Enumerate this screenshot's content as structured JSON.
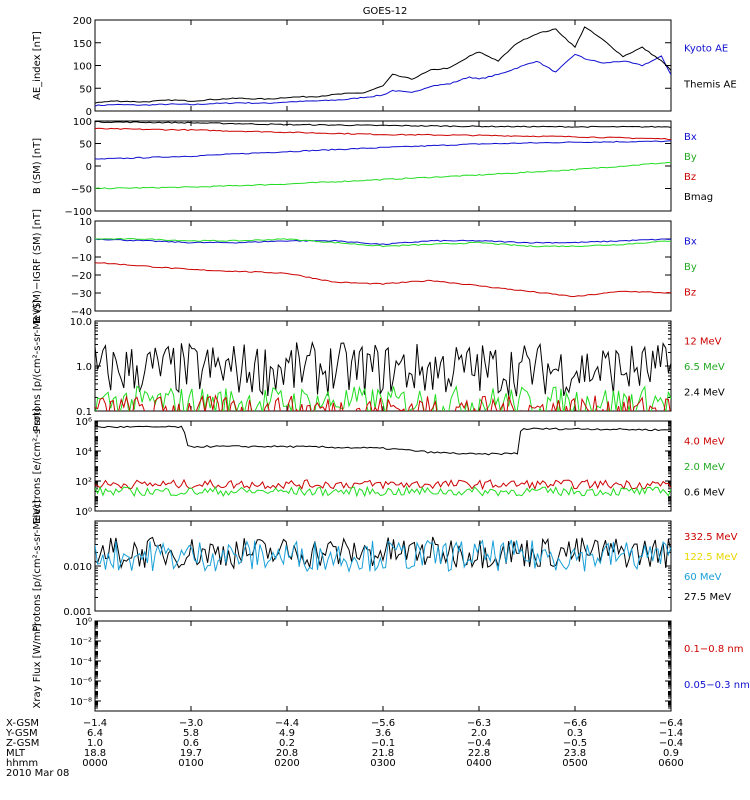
{
  "title": "GOES-12",
  "colors": {
    "black": "#000000",
    "blue": "#1010d0",
    "green": "#22dd22",
    "red": "#cc0000",
    "cyan": "#1aa0d8",
    "yellow": "#e8d800"
  },
  "chart_data": [
    {
      "type": "line",
      "ylabel": "AE_index [nT]",
      "scale": "linear",
      "ylim": [
        0,
        200
      ],
      "ticks": [
        "0",
        "50",
        "100",
        "150",
        "200"
      ],
      "tick_values": [
        0,
        50,
        100,
        150,
        200
      ],
      "legend": [
        {
          "text": "Kyoto AE",
          "color": "#1010d0"
        },
        {
          "text": "Themis AE",
          "color": "#000000"
        }
      ],
      "series": [
        {
          "name": "Kyoto AE",
          "color": "#1010d0",
          "x": [
            0,
            0.2,
            0.5,
            0.8,
            1.0,
            1.2,
            1.5,
            1.8,
            2.0,
            2.3,
            2.6,
            2.8,
            3.0,
            3.1,
            3.3,
            3.5,
            3.7,
            3.9,
            4.0,
            4.2,
            4.4,
            4.6,
            4.8,
            5.0,
            5.1,
            5.3,
            5.5,
            5.7,
            5.9,
            6.0
          ],
          "y": [
            12,
            14,
            13,
            15,
            14,
            16,
            18,
            17,
            20,
            22,
            25,
            30,
            35,
            45,
            40,
            55,
            60,
            75,
            70,
            80,
            95,
            110,
            85,
            125,
            115,
            105,
            110,
            100,
            120,
            80
          ]
        },
        {
          "name": "Themis AE",
          "color": "#000000",
          "x": [
            0,
            0.2,
            0.5,
            0.8,
            1.0,
            1.2,
            1.5,
            1.8,
            2.0,
            2.3,
            2.6,
            2.8,
            3.0,
            3.1,
            3.3,
            3.5,
            3.7,
            3.9,
            4.0,
            4.2,
            4.4,
            4.6,
            4.8,
            5.0,
            5.1,
            5.3,
            5.5,
            5.7,
            5.9,
            6.0
          ],
          "y": [
            18,
            22,
            20,
            24,
            22,
            25,
            28,
            26,
            30,
            32,
            38,
            40,
            55,
            80,
            70,
            90,
            95,
            120,
            130,
            110,
            150,
            170,
            180,
            140,
            185,
            155,
            120,
            140,
            110,
            90
          ]
        }
      ]
    },
    {
      "type": "line",
      "ylabel": "B (SM) [nT]",
      "scale": "linear",
      "ylim": [
        -100,
        100
      ],
      "ticks": [
        "−100",
        "−50",
        "0",
        "50",
        "100"
      ],
      "tick_values": [
        -100,
        -50,
        0,
        50,
        100
      ],
      "legend": [
        {
          "text": "Bx",
          "color": "#1010d0"
        },
        {
          "text": "By",
          "color": "#22aa22"
        },
        {
          "text": "Bz",
          "color": "#cc0000"
        },
        {
          "text": "Bmag",
          "color": "#000000"
        }
      ],
      "series": [
        {
          "name": "Bx",
          "color": "#1010d0",
          "x": [
            0,
            1,
            2,
            3,
            4,
            5,
            6
          ],
          "y": [
            15,
            22,
            32,
            41,
            49,
            53,
            55
          ]
        },
        {
          "name": "By",
          "color": "#22dd22",
          "x": [
            0,
            1,
            2,
            3,
            4,
            5,
            6
          ],
          "y": [
            -50,
            -47,
            -40,
            -30,
            -20,
            -8,
            8
          ]
        },
        {
          "name": "Bz",
          "color": "#cc0000",
          "x": [
            0,
            1,
            2,
            3,
            4,
            5,
            6
          ],
          "y": [
            83,
            80,
            75,
            70,
            68,
            65,
            60
          ]
        },
        {
          "name": "Bmag",
          "color": "#000000",
          "x": [
            0,
            1,
            2,
            3,
            4,
            5,
            6
          ],
          "y": [
            98,
            96,
            92,
            90,
            88,
            87,
            87
          ]
        }
      ]
    },
    {
      "type": "line",
      "ylabel": "B (SM)−IGRF (SM) [nT]",
      "scale": "linear",
      "ylim": [
        -40,
        10
      ],
      "ticks": [
        "−40",
        "−30",
        "−20",
        "−10",
        "0",
        "10"
      ],
      "tick_values": [
        -40,
        -30,
        -20,
        -10,
        0,
        10
      ],
      "legend": [
        {
          "text": "Bx",
          "color": "#1010d0"
        },
        {
          "text": "By",
          "color": "#22aa22"
        },
        {
          "text": "Bz",
          "color": "#cc0000"
        }
      ],
      "series": [
        {
          "name": "Bx",
          "color": "#1010d0",
          "x": [
            0,
            0.5,
            1,
            1.5,
            2,
            2.5,
            3,
            3.5,
            4,
            4.5,
            5,
            5.5,
            6
          ],
          "y": [
            0,
            -1,
            -2,
            -2,
            -1,
            -1,
            -3,
            -1,
            -1,
            -2,
            -2,
            -1,
            0
          ]
        },
        {
          "name": "By",
          "color": "#22dd22",
          "x": [
            0,
            0.5,
            1,
            1.5,
            2,
            2.5,
            3,
            3.5,
            4,
            4.5,
            5,
            5.5,
            6
          ],
          "y": [
            0,
            0,
            -1,
            -1,
            0,
            -2,
            -4,
            -3,
            -2,
            -4,
            -4,
            -3,
            -1
          ]
        },
        {
          "name": "Bz",
          "color": "#cc0000",
          "x": [
            0,
            0.5,
            1,
            1.5,
            2,
            2.5,
            3,
            3.5,
            4,
            4.5,
            5,
            5.5,
            6
          ],
          "y": [
            -13,
            -15,
            -17,
            -18,
            -19,
            -24,
            -25,
            -23,
            -26,
            -29,
            -32,
            -29,
            -30
          ]
        }
      ]
    },
    {
      "type": "line",
      "ylabel": "Protons [p/(cm²-s-sr-MeV)]",
      "scale": "log",
      "ylim": [
        0.1,
        10
      ],
      "ticks": [
        "0.1",
        "1.0",
        "10.0"
      ],
      "tick_values": [
        0.1,
        1,
        10
      ],
      "legend": [
        {
          "text": "12 MeV",
          "color": "#cc0000"
        },
        {
          "text": "6.5 MeV",
          "color": "#22aa22"
        },
        {
          "text": "2.4 MeV",
          "color": "#000000"
        }
      ],
      "series": [
        {
          "name": "2.4 MeV",
          "color": "#000000",
          "noisy": true,
          "base": 0.85,
          "amp": 0.6
        },
        {
          "name": "6.5 MeV",
          "color": "#22dd22",
          "noisy": true,
          "base": 0.16,
          "amp": 0.35
        },
        {
          "name": "12 MeV",
          "color": "#cc0000",
          "noisy": true,
          "base": 0.11,
          "amp": 0.3
        }
      ]
    },
    {
      "type": "line",
      "ylabel": "Electrons [e/(cm²-s-sr)]",
      "scale": "log",
      "ylim": [
        1,
        1000000
      ],
      "ticks": [
        "10⁰",
        "10²",
        "10⁴",
        "10⁶"
      ],
      "tick_values": [
        1,
        100,
        10000,
        1000000
      ],
      "legend": [
        {
          "text": "4.0 MeV",
          "color": "#cc0000"
        },
        {
          "text": "2.0 MeV",
          "color": "#22aa22"
        },
        {
          "text": "0.6 MeV",
          "color": "#000000"
        }
      ],
      "series": [
        {
          "name": "0.6 MeV",
          "color": "#000000",
          "x": [
            0,
            0.9,
            0.95,
            2.0,
            3.0,
            3.5,
            4.0,
            4.4,
            4.45,
            5.0,
            6.0
          ],
          "y": [
            400000,
            400000,
            20000,
            20000,
            15000,
            8000,
            6000,
            7000,
            300000,
            300000,
            250000
          ]
        },
        {
          "name": "4.0 MeV",
          "color": "#cc0000",
          "noisy": true,
          "base": 60,
          "amp": 0.3
        },
        {
          "name": "2.0 MeV",
          "color": "#22dd22",
          "noisy": true,
          "base": 20,
          "amp": 0.3
        }
      ]
    },
    {
      "type": "line",
      "ylabel": "Protons [p/(cm²-s-sr-MeV)]",
      "scale": "log",
      "ylim": [
        0.001,
        0.1
      ],
      "ticks": [
        "0.001",
        "0.010"
      ],
      "tick_values": [
        0.001,
        0.01
      ],
      "legend": [
        {
          "text": "332.5 MeV",
          "color": "#cc0000"
        },
        {
          "text": "122.5 MeV",
          "color": "#e8d800"
        },
        {
          "text": "60 MeV",
          "color": "#1aa0d8"
        },
        {
          "text": "27.5 MeV",
          "color": "#000000"
        }
      ],
      "series": [
        {
          "name": "27.5 MeV",
          "color": "#000000",
          "noisy": true,
          "base": 0.02,
          "amp": 0.35
        },
        {
          "name": "60 MeV",
          "color": "#1aa0d8",
          "noisy": true,
          "base": 0.017,
          "amp": 0.35
        }
      ]
    },
    {
      "type": "line",
      "ylabel": "Xray Flux [W/m²]",
      "scale": "log",
      "ylim": [
        1e-09,
        1
      ],
      "ticks": [
        "10⁻⁸",
        "10⁻⁶",
        "10⁻⁴",
        "10⁻²",
        "10⁰"
      ],
      "tick_values": [
        1e-08,
        1e-06,
        0.0001,
        0.01,
        1
      ],
      "legend": [
        {
          "text": "0.1−0.8 nm",
          "color": "#cc0000"
        },
        {
          "text": "0.05−0.3 nm",
          "color": "#1010d0"
        }
      ],
      "series": []
    }
  ],
  "xaxis": {
    "ticks": [
      0,
      1,
      2,
      3,
      4,
      5,
      6
    ],
    "rows": [
      {
        "label": "X-GSM",
        "values": [
          "−1.4",
          "−3.0",
          "−4.4",
          "−5.6",
          "−6.3",
          "−6.6",
          "−6.4"
        ]
      },
      {
        "label": "Y-GSM",
        "values": [
          "6.4",
          "5.8",
          "4.9",
          "3.6",
          "2.0",
          "0.3",
          "−1.4"
        ]
      },
      {
        "label": "Z-GSM",
        "values": [
          "1.0",
          "0.6",
          "0.2",
          "−0.1",
          "−0.4",
          "−0.5",
          "−0.4"
        ]
      },
      {
        "label": "MLT",
        "values": [
          "18.8",
          "19.7",
          "20.8",
          "21.8",
          "22.8",
          "23.8",
          "0.9"
        ]
      },
      {
        "label": "hhmm",
        "values": [
          "0000",
          "0100",
          "0200",
          "0300",
          "0400",
          "0500",
          "0600"
        ]
      }
    ],
    "date": "2010 Mar 08"
  }
}
